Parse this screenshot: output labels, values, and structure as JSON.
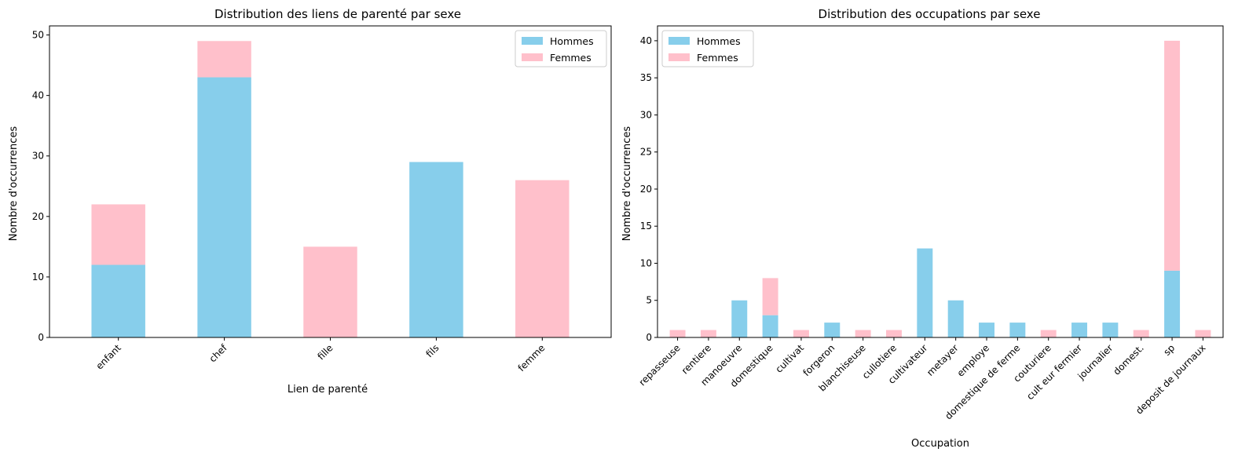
{
  "colors": {
    "hommes": "#87ceeb",
    "femmes": "#ffc0cb"
  },
  "chart_data": [
    {
      "type": "bar",
      "stacked": true,
      "title": "Distribution des liens de parenté par sexe",
      "xlabel": "Lien de parenté",
      "ylabel": "Nombre d'occurrences",
      "categories": [
        "enfant",
        "chef",
        "fille",
        "fils",
        "femme"
      ],
      "series": [
        {
          "name": "Hommes",
          "values": [
            12,
            43,
            0,
            29,
            0
          ]
        },
        {
          "name": "Femmes",
          "values": [
            10,
            6,
            15,
            0,
            26
          ]
        }
      ],
      "ylim": [
        0,
        51.5
      ],
      "yticks": [
        0,
        10,
        20,
        30,
        40,
        50
      ],
      "legend": "top-right",
      "grid": false
    },
    {
      "type": "bar",
      "stacked": true,
      "title": "Distribution des occupations par sexe",
      "xlabel": "Occupation",
      "ylabel": "Nombre d'occurrences",
      "categories": [
        "repasseuse",
        "rentiere",
        "manoeuvre",
        "domestique",
        "cultivat",
        "forgeron",
        "blanchiseuse",
        "cullotiere",
        "cultivateur",
        "metayer",
        "employe",
        "domestique de ferme",
        "couturiere",
        "cult eur fermier",
        "journalier",
        "domest.",
        "sp",
        "deposit de journaux"
      ],
      "series": [
        {
          "name": "Hommes",
          "values": [
            0,
            0,
            5,
            3,
            0,
            2,
            0,
            0,
            12,
            5,
            2,
            2,
            0,
            2,
            2,
            0,
            9,
            0
          ]
        },
        {
          "name": "Femmes",
          "values": [
            1,
            1,
            0,
            5,
            1,
            0,
            1,
            1,
            0,
            0,
            0,
            0,
            1,
            0,
            0,
            1,
            31,
            1
          ]
        }
      ],
      "ylim": [
        0,
        42
      ],
      "yticks": [
        0,
        5,
        10,
        15,
        20,
        25,
        30,
        35,
        40
      ],
      "legend": "top-left",
      "grid": false
    }
  ]
}
